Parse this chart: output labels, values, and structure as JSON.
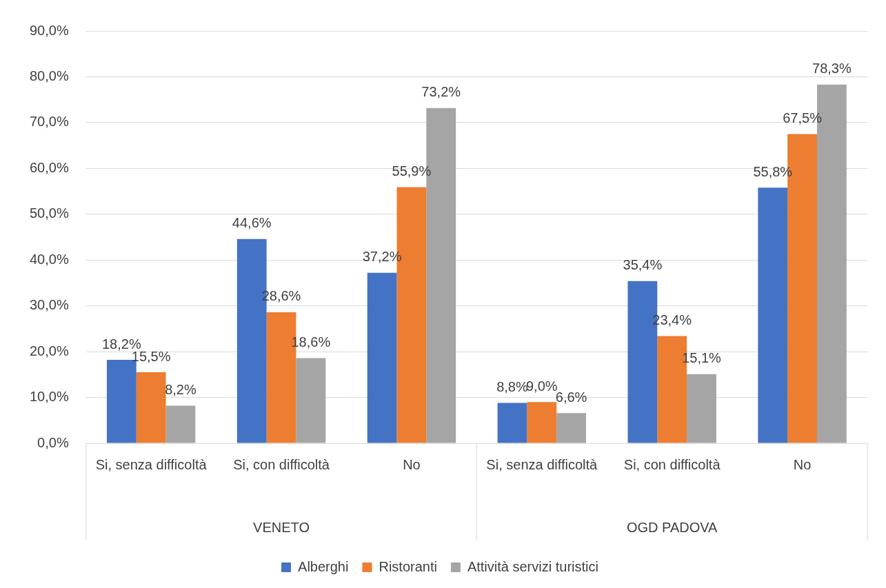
{
  "chart_data": {
    "type": "bar",
    "categories": [
      "Si, senza difficoltà",
      "Si, con difficoltà",
      "No",
      "Si, senza difficoltà",
      "Si, con difficoltà",
      "No"
    ],
    "series": [
      {
        "name": "Alberghi",
        "color": "#4472c4",
        "values": [
          18.2,
          44.6,
          37.2,
          8.8,
          35.4,
          55.8
        ],
        "value_labels": [
          "18,2%",
          "44,6%",
          "37,2%",
          "8,8%",
          "35,4%",
          "55,8%"
        ]
      },
      {
        "name": "Ristoranti",
        "color": "#ed7d31",
        "values": [
          15.5,
          28.6,
          55.9,
          9.0,
          23.4,
          67.5
        ],
        "value_labels": [
          "15,5%",
          "28,6%",
          "55,9%",
          "9,0%",
          "23,4%",
          "67,5%"
        ]
      },
      {
        "name": "Attività servizi turistici",
        "color": "#a5a5a5",
        "values": [
          8.2,
          18.6,
          73.2,
          6.6,
          15.1,
          78.3
        ],
        "value_labels": [
          "8,2%",
          "18,6%",
          "73,2%",
          "6,6%",
          "15,1%",
          "78,3%"
        ]
      }
    ],
    "annotations": [
      "VENETO",
      "OGD PADOVA"
    ],
    "ylim": [
      0,
      90
    ],
    "yticks": [
      {
        "value": 0,
        "label": "0,0%"
      },
      {
        "value": 10,
        "label": "10,0%"
      },
      {
        "value": 20,
        "label": "20,0%"
      },
      {
        "value": 30,
        "label": "30,0%"
      },
      {
        "value": 40,
        "label": "40,0%"
      },
      {
        "value": 50,
        "label": "50,0%"
      },
      {
        "value": 60,
        "label": "60,0%"
      },
      {
        "value": 70,
        "label": "70,0%"
      },
      {
        "value": 80,
        "label": "80,0%"
      },
      {
        "value": 90,
        "label": "90,0%"
      }
    ],
    "grid": "y",
    "legend": "bottom"
  }
}
